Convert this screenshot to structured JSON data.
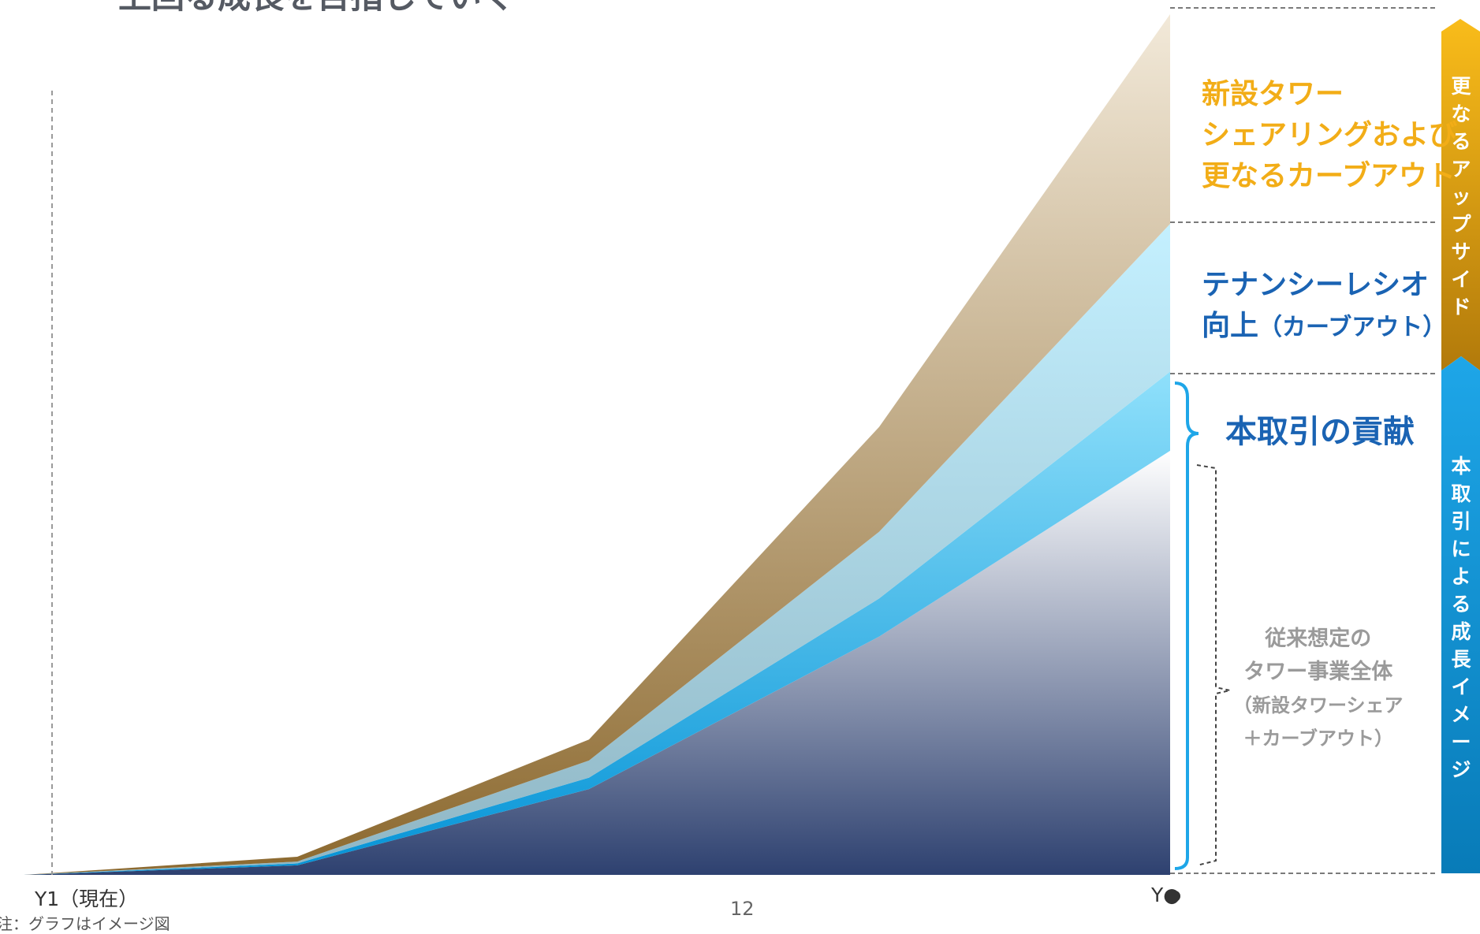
{
  "title": "上回る成長を目指していく",
  "colors": {
    "base_top": "#ffffff",
    "base_bottom": "#2e4170",
    "contribution_top": "#8fe0fb",
    "contribution_bottom": "#0493d6",
    "tenancy_top": "#c4f0ff",
    "tenancy_bottom": "#8fb6c4",
    "upside_top": "#f2e9d9",
    "upside_bottom": "#8c692f",
    "gold_text": "#f2ad17",
    "blue_text": "#1a63b3",
    "upside_bar_top": "#f9bc1a",
    "upside_bar_bottom": "#b27a0b",
    "growth_bar_top": "#1ea6e8",
    "growth_bar_bottom": "#087bb8"
  },
  "chart_data": {
    "type": "area",
    "x": [
      "Y1（現在）",
      "",
      "",
      "",
      "Y●"
    ],
    "series": [
      {
        "name": "従来想定のタワー事業全体（新設タワーシェア＋カーブアウト）",
        "values": [
          0,
          10,
          90,
          250,
          445
        ]
      },
      {
        "name": "本取引の貢献",
        "values": [
          0,
          2,
          12,
          40,
          83
        ]
      },
      {
        "name": "テナンシーレシオ向上（カーブアウト）",
        "values": [
          0,
          2,
          18,
          70,
          155
        ]
      },
      {
        "name": "新設タワーシェアリングおよび更なるカーブアウト",
        "values": [
          0,
          5,
          22,
          110,
          220
        ]
      }
    ],
    "stacked": true
  },
  "labels": {
    "upside_lines": [
      "新設タワー",
      "シェアリングおよび",
      "更なるカーブアウト"
    ],
    "tenancy_line1": "テナンシーレシオ",
    "tenancy_line2_main": "向上",
    "tenancy_line2_sub": "（カーブアウト）",
    "contribution": "本取引の貢献",
    "base_lines": [
      "従来想定の",
      "タワー事業全体"
    ],
    "base_sub_lines": [
      "（新設タワーシェア",
      "＋カーブアウト）"
    ]
  },
  "side_bars": {
    "upside_chars": [
      "更",
      "な",
      "る",
      "ア",
      "ッ",
      "プ",
      "サ",
      "イ",
      "ド"
    ],
    "growth_chars": [
      "本",
      "取",
      "引",
      "に",
      "よ",
      "る",
      "成",
      "長",
      "イ",
      "メ",
      "ー",
      "ジ"
    ]
  },
  "axis": {
    "start": "Y1（現在）",
    "end": "Y●"
  },
  "footer": {
    "page_number": "12",
    "note": "注：グラフはイメージ図"
  }
}
